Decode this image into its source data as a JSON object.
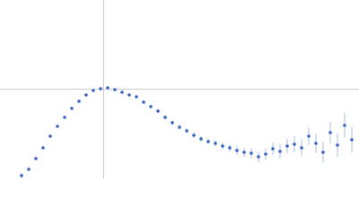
{
  "chart_data": {
    "type": "scatter",
    "xlim": [
      0,
      6
    ],
    "ylim": [
      0,
      2.2
    ],
    "guides": {
      "x": 1.732,
      "y": 1.104
    },
    "guide_color": "#c8c8c8",
    "series": [
      {
        "color": "#3a66c0",
        "error_color": "#a9bfe6",
        "x": [
          0.36,
          0.48,
          0.6,
          0.72,
          0.84,
          0.96,
          1.08,
          1.2,
          1.32,
          1.44,
          1.56,
          1.68,
          1.8,
          1.92,
          2.04,
          2.16,
          2.28,
          2.4,
          2.52,
          2.64,
          2.76,
          2.88,
          3.0,
          3.12,
          3.24,
          3.36,
          3.48,
          3.6,
          3.72,
          3.84,
          3.96,
          4.08,
          4.2,
          4.32,
          4.44,
          4.56,
          4.68,
          4.8,
          4.92,
          5.04,
          5.16,
          5.28,
          5.4,
          5.52,
          5.64,
          5.76,
          5.88
        ],
        "values": [
          0.044,
          0.121,
          0.253,
          0.385,
          0.528,
          0.649,
          0.759,
          0.869,
          0.957,
          1.034,
          1.089,
          1.111,
          1.122,
          1.1,
          1.067,
          1.034,
          1.012,
          0.946,
          0.891,
          0.836,
          0.759,
          0.693,
          0.638,
          0.594,
          0.539,
          0.495,
          0.462,
          0.44,
          0.407,
          0.385,
          0.352,
          0.33,
          0.319,
          0.275,
          0.308,
          0.374,
          0.341,
          0.407,
          0.429,
          0.385,
          0.528,
          0.44,
          0.33,
          0.572,
          0.418,
          0.66,
          0.484
        ],
        "errors": [
          0.03,
          0.02,
          0.015,
          0.012,
          0.01,
          0.01,
          0.01,
          0.01,
          0.01,
          0.01,
          0.01,
          0.01,
          0.012,
          0.012,
          0.014,
          0.015,
          0.016,
          0.018,
          0.02,
          0.022,
          0.024,
          0.026,
          0.028,
          0.03,
          0.032,
          0.034,
          0.036,
          0.04,
          0.044,
          0.048,
          0.052,
          0.056,
          0.06,
          0.066,
          0.072,
          0.078,
          0.085,
          0.09,
          0.1,
          0.105,
          0.11,
          0.12,
          0.125,
          0.13,
          0.14,
          0.15,
          0.16
        ]
      }
    ]
  }
}
